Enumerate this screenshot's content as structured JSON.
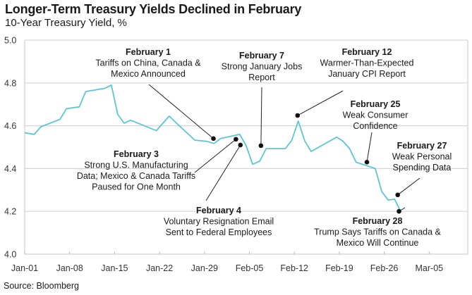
{
  "header": {
    "title": "Longer-Term Treasury Yields Declined in February",
    "subtitle": "10-Year Treasury Yield, %"
  },
  "footer": {
    "source": "Source: Bloomberg"
  },
  "chart_data": {
    "type": "line",
    "title": "Longer-Term Treasury Yields Declined in February",
    "subtitle": "10-Year Treasury Yield, %",
    "xlabel": "",
    "ylabel": "10-Year Treasury Yield, %",
    "ylim": [
      4.0,
      5.0
    ],
    "yticks": [
      "4.0",
      "4.2",
      "4.4",
      "4.6",
      "4.8",
      "5.0"
    ],
    "ytick_values": [
      4.0,
      4.2,
      4.4,
      4.6,
      4.8,
      5.0
    ],
    "xlim_days": [
      0,
      69
    ],
    "xticks": [
      "Jan-01",
      "Jan-08",
      "Jan-15",
      "Jan-22",
      "Jan-29",
      "Feb-05",
      "Feb-12",
      "Feb-19",
      "Feb-26",
      "Mar-05"
    ],
    "xtick_days": [
      0,
      7,
      14,
      21,
      28,
      35,
      42,
      49,
      56,
      63
    ],
    "grid": "horizontal",
    "line_color": "#5bc8d1",
    "series": [
      {
        "name": "10-Year Treasury Yield",
        "x_days": [
          0,
          1.5,
          2.5,
          5.5,
          6.5,
          8.5,
          9.5,
          12.5,
          13.5,
          14.5,
          15.5,
          16.5,
          20.5,
          22.5,
          23.9,
          26.5,
          28.4,
          29.5,
          30.5,
          33.5,
          34.5,
          35.5,
          36.6,
          37.6,
          40.6,
          41.6,
          42.6,
          43.6,
          44.6,
          48.6,
          49.6,
          50.6,
          51.6,
          54.6,
          55.6,
          56.6,
          57.6,
          58.5
        ],
        "values": [
          4.567,
          4.56,
          4.595,
          4.63,
          4.68,
          4.688,
          4.76,
          4.775,
          4.79,
          4.653,
          4.612,
          4.626,
          4.577,
          4.645,
          4.605,
          4.533,
          4.527,
          4.517,
          4.54,
          4.56,
          4.507,
          4.42,
          4.435,
          4.493,
          4.493,
          4.533,
          4.622,
          4.53,
          4.48,
          4.547,
          4.527,
          4.493,
          4.43,
          4.4,
          4.293,
          4.253,
          4.257,
          4.203
        ]
      }
    ],
    "annotations": [
      {
        "date": "February 1",
        "lines": [
          "Tariffs on China, Canada &",
          "Mexico Announced"
        ],
        "point_day": 29.4,
        "point_value": 4.54
      },
      {
        "date": "February 3",
        "lines": [
          "Strong U.S. Manufacturing",
          "Data; Mexico & Canada Tariffs",
          "Paused for One Month"
        ],
        "point_day": 32.9,
        "point_value": 4.537
      },
      {
        "date": "February 4",
        "lines": [
          "Voluntary Resignation Email",
          "Sent to Federal Employees"
        ],
        "point_day": 33.6,
        "point_value": 4.51
      },
      {
        "date": "February 7",
        "lines": [
          "Strong January Jobs",
          "Report"
        ],
        "point_day": 36.8,
        "point_value": 4.507
      },
      {
        "date": "February 12",
        "lines": [
          "Warmer-Than-Expected",
          "January CPI Report"
        ],
        "point_day": 42.5,
        "point_value": 4.648
      },
      {
        "date": "February 25",
        "lines": [
          "Weak Consumer",
          "Confidence"
        ],
        "point_day": 53.3,
        "point_value": 4.43
      },
      {
        "date": "February 27",
        "lines": [
          "Weak Personal",
          "Spending Data"
        ],
        "point_day": 58.1,
        "point_value": 4.277
      },
      {
        "date": "February 28",
        "lines": [
          "Trump Says Tariffs on Canada &",
          "Mexico Will Continue"
        ],
        "point_day": 58.3,
        "point_value": 4.2
      }
    ]
  }
}
